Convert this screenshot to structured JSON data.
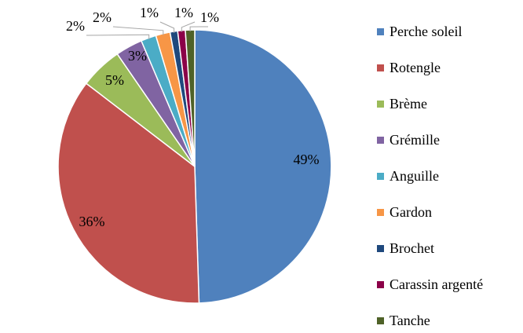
{
  "chart_data": {
    "type": "pie",
    "title": "",
    "legend_position": "right",
    "start": "top-clockwise",
    "slices": [
      {
        "name": "Perche soleil",
        "value": 49.5,
        "label": "49%",
        "color": "#4F81BD"
      },
      {
        "name": "Rotengle",
        "value": 35.9,
        "label": "36%",
        "color": "#C0504D"
      },
      {
        "name": "Brème",
        "value": 5.0,
        "label": "5%",
        "color": "#9BBB59"
      },
      {
        "name": "Grémille",
        "value": 3.2,
        "label": "3%",
        "color": "#8064A2"
      },
      {
        "name": "Anguille",
        "value": 1.8,
        "label": "2%",
        "color": "#4BACC6"
      },
      {
        "name": "Gardon",
        "value": 1.7,
        "label": "2%",
        "color": "#F79646"
      },
      {
        "name": "Brochet",
        "value": 0.9,
        "label": "1%",
        "color": "#1F497D"
      },
      {
        "name": "Carassin argenté",
        "value": 0.9,
        "label": "1%",
        "color": "#8B0048"
      },
      {
        "name": "Tanche",
        "value": 1.1,
        "label": "1%",
        "color": "#4F6228"
      }
    ]
  }
}
